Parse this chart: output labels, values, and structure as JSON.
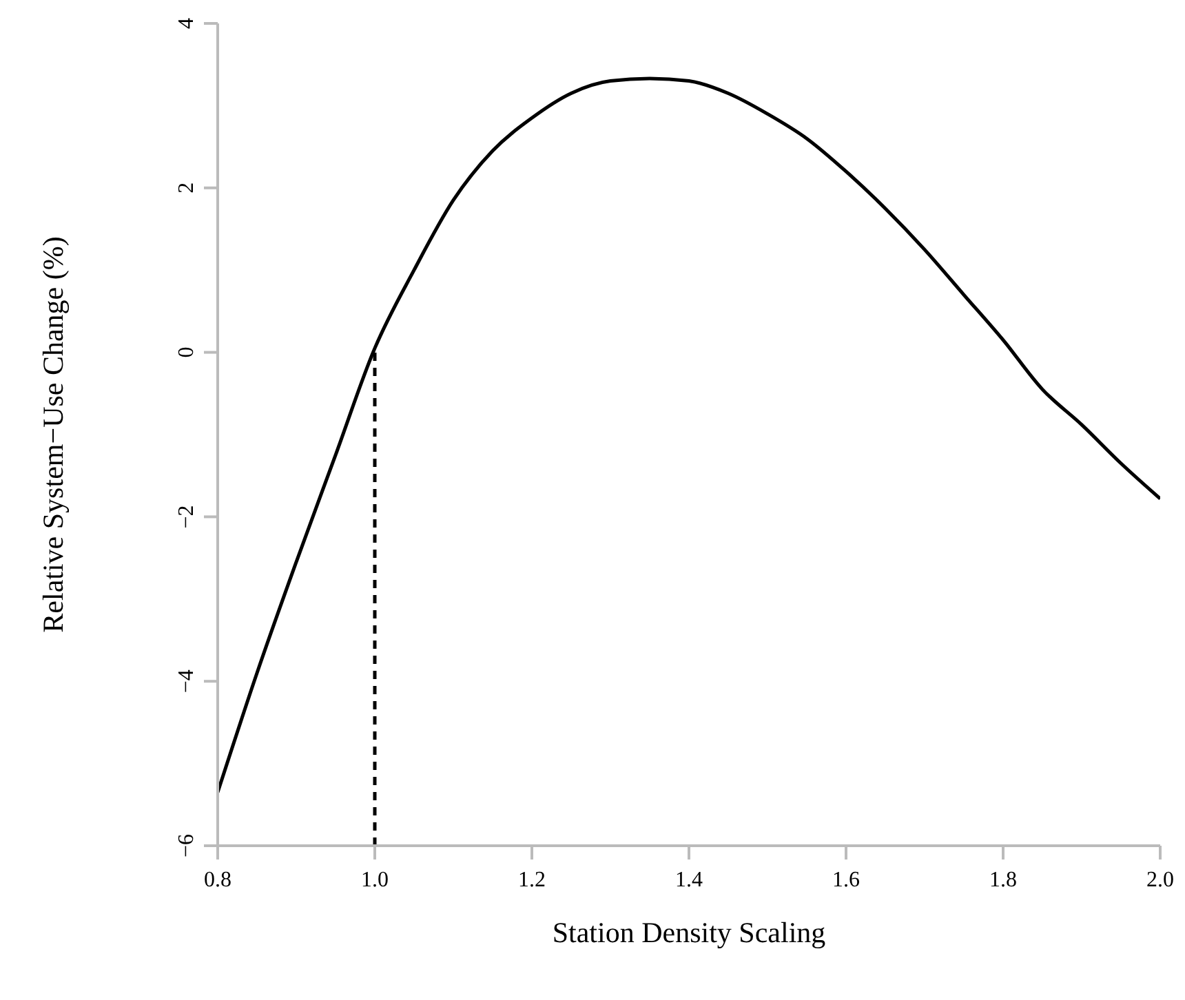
{
  "chart_data": {
    "type": "line",
    "xlabel": "Station Density Scaling",
    "ylabel": "Relative System−Use Change (%)",
    "x": [
      0.8,
      0.85,
      0.9,
      0.95,
      1.0,
      1.05,
      1.1,
      1.15,
      1.2,
      1.25,
      1.3,
      1.35,
      1.4,
      1.45,
      1.5,
      1.55,
      1.6,
      1.65,
      1.7,
      1.75,
      1.8,
      1.85,
      1.9,
      1.95,
      2.0
    ],
    "series": [
      {
        "color": "#000000",
        "values": [
          -5.35,
          -3.9,
          -2.55,
          -1.25,
          0.05,
          1.0,
          1.85,
          2.45,
          2.85,
          3.15,
          3.3,
          3.33,
          3.3,
          3.15,
          2.9,
          2.6,
          2.2,
          1.75,
          1.25,
          0.7,
          0.15,
          -0.45,
          -0.88,
          -1.35,
          -1.78
        ]
      }
    ],
    "xlim": [
      0.8,
      2.0
    ],
    "xticks": [
      0.8,
      {
        "value": 1,
        "label": "1.0"
      },
      1.2,
      1.4,
      1.6,
      1.8,
      {
        "value": 2,
        "label": "2.0"
      }
    ],
    "ylim": [
      -6,
      4
    ],
    "yticks": [
      -6,
      -4,
      -2,
      0,
      2,
      4
    ],
    "ref_lines": [
      {
        "axis": "x",
        "value": 1.0,
        "color": "#000000",
        "line_style": "dashed"
      }
    ],
    "grid": false,
    "legend": false,
    "marker": "none",
    "line_style": "solid"
  }
}
